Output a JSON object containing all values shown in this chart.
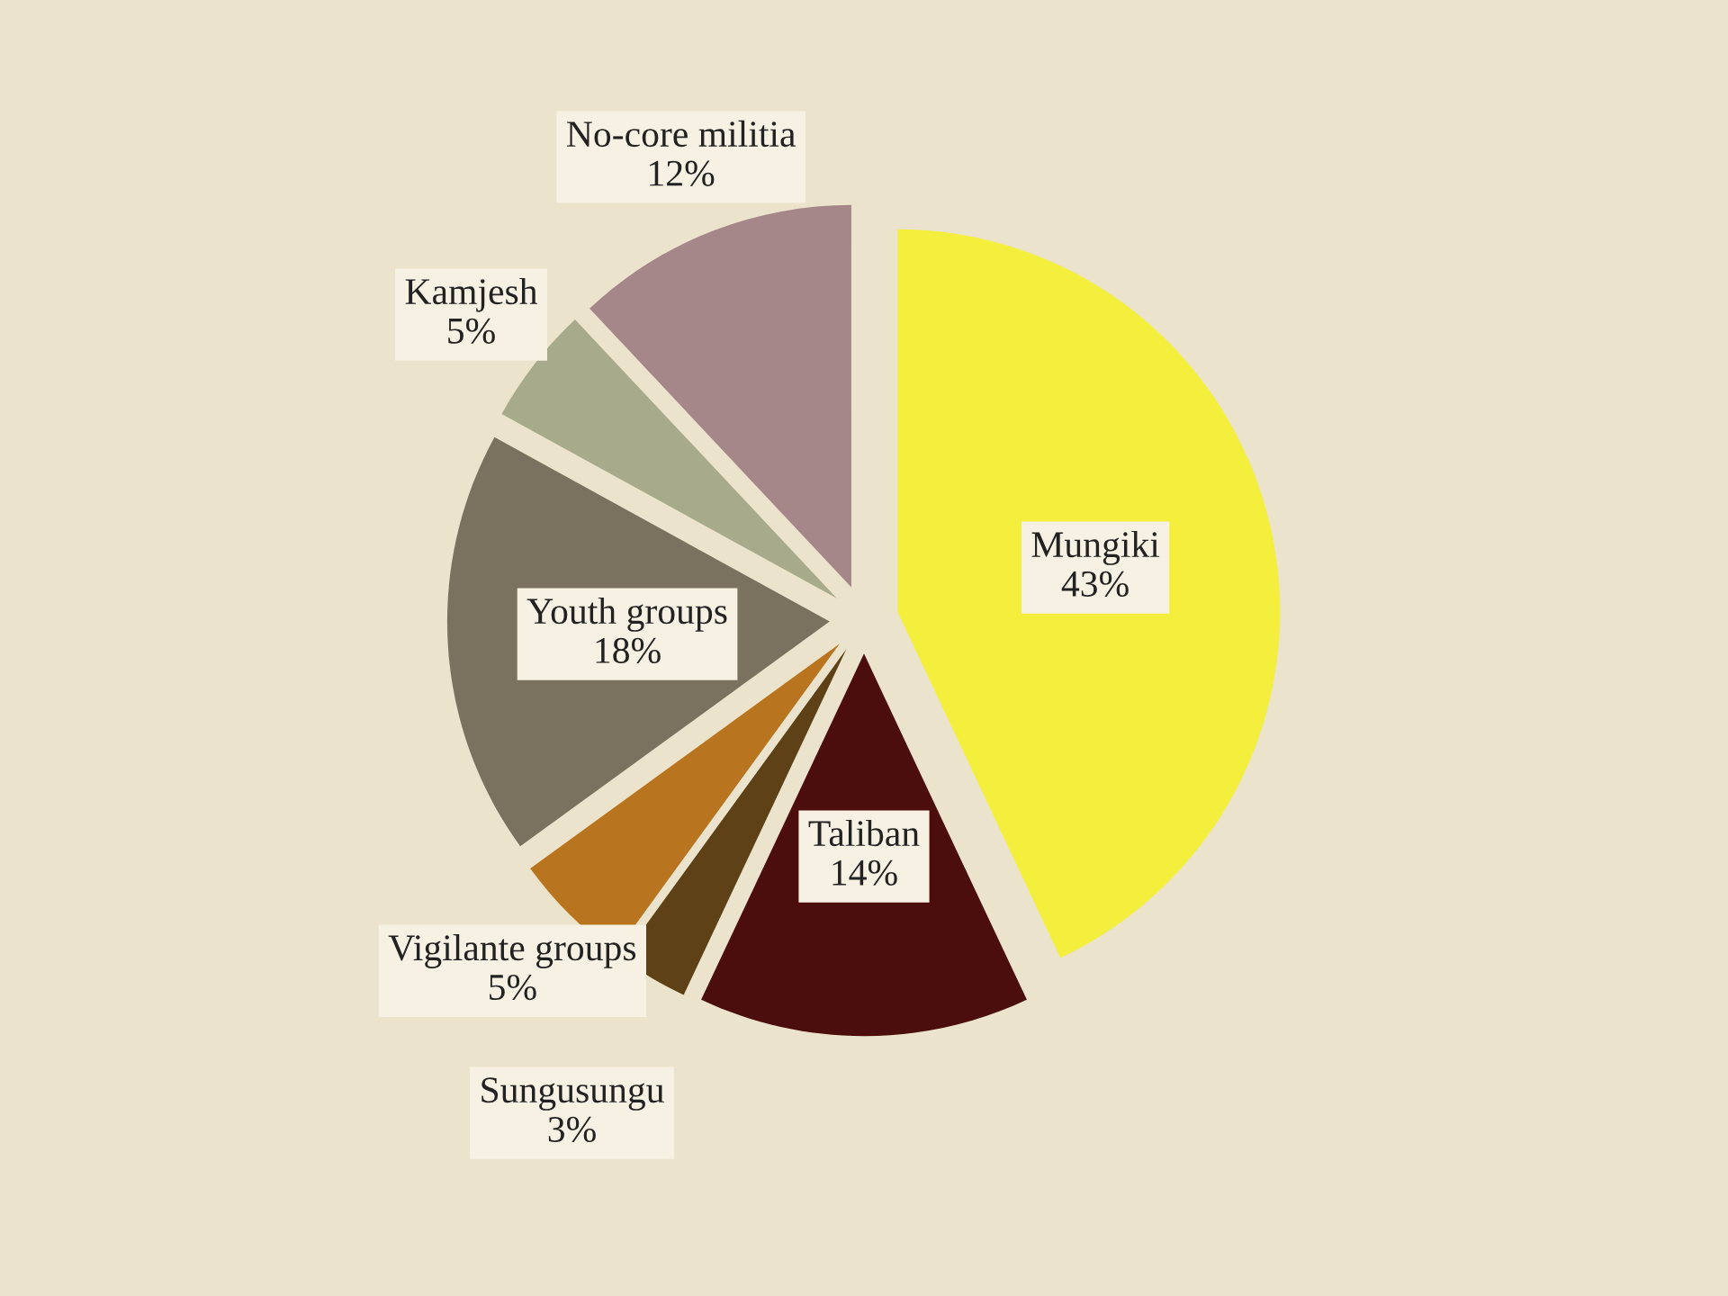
{
  "chart_data": {
    "type": "pie",
    "categories": [
      "Mungiki",
      "Taliban",
      "Sungusungu",
      "Vigilante groups",
      "Youth groups",
      "Kamjesh",
      "No-core militia"
    ],
    "values": [
      43,
      14,
      3,
      5,
      18,
      5,
      12
    ],
    "value_labels": [
      "43%",
      "14%",
      "3%",
      "5%",
      "18%",
      "5%",
      "12%"
    ],
    "colors": [
      "#f4ef3c",
      "#4c0d0d",
      "#5e4116",
      "#b9741f",
      "#7a715f",
      "#a7ab8b",
      "#a58789"
    ]
  }
}
